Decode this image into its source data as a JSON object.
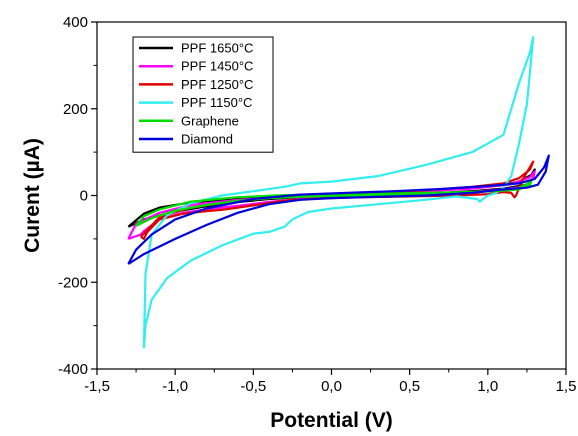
{
  "chart_data": {
    "type": "line",
    "title": "",
    "xlabel": "Potential (V)",
    "ylabel": "Curent (µA)",
    "xlim": [
      -1.5,
      1.5
    ],
    "ylim": [
      -400,
      400
    ],
    "xticks": [
      "-1,5",
      "-1,0",
      "-0,5",
      "0,0",
      "0,5",
      "1,0",
      "1,5"
    ],
    "yticks": [
      "400",
      "200",
      "0",
      "-200",
      "-400"
    ],
    "grid": false,
    "legend_position": "top-left",
    "series": [
      {
        "name": "PPF 1650°C",
        "color": "#000000",
        "points": [
          [
            -1.3,
            -72
          ],
          [
            -1.2,
            -55
          ],
          [
            -1.0,
            -37
          ],
          [
            -0.8,
            -25
          ],
          [
            -0.6,
            -15
          ],
          [
            -0.4,
            -8
          ],
          [
            -0.2,
            -4
          ],
          [
            0.0,
            -2
          ],
          [
            0.3,
            0
          ],
          [
            0.6,
            4
          ],
          [
            0.9,
            10
          ],
          [
            1.1,
            16
          ],
          [
            1.25,
            25
          ],
          [
            1.29,
            40
          ],
          [
            1.3,
            60
          ],
          [
            1.28,
            48
          ],
          [
            1.2,
            32
          ],
          [
            1.1,
            24
          ],
          [
            0.9,
            18
          ],
          [
            0.6,
            12
          ],
          [
            0.3,
            7
          ],
          [
            0.0,
            4
          ],
          [
            -0.3,
            -1
          ],
          [
            -0.5,
            -5
          ],
          [
            -0.7,
            -10
          ],
          [
            -0.9,
            -16
          ],
          [
            -1.1,
            -28
          ],
          [
            -1.2,
            -42
          ],
          [
            -1.3,
            -72
          ]
        ]
      },
      {
        "name": "PPF 1450°C",
        "color": "#ff00ff",
        "points": [
          [
            -1.3,
            -100
          ],
          [
            -1.22,
            -90
          ],
          [
            -1.2,
            -82
          ],
          [
            -1.1,
            -55
          ],
          [
            -0.95,
            -40
          ],
          [
            -0.8,
            -32
          ],
          [
            -0.7,
            -28
          ],
          [
            -0.55,
            -22
          ],
          [
            -0.4,
            -15
          ],
          [
            -0.2,
            -8
          ],
          [
            0.0,
            -4
          ],
          [
            0.3,
            -1
          ],
          [
            0.6,
            3
          ],
          [
            0.9,
            8
          ],
          [
            1.1,
            14
          ],
          [
            1.25,
            22
          ],
          [
            1.29,
            40
          ],
          [
            1.3,
            55
          ],
          [
            1.27,
            42
          ],
          [
            1.15,
            26
          ],
          [
            0.9,
            16
          ],
          [
            0.6,
            10
          ],
          [
            0.3,
            5
          ],
          [
            0.0,
            2
          ],
          [
            -0.3,
            -3
          ],
          [
            -0.6,
            -10
          ],
          [
            -0.9,
            -22
          ],
          [
            -1.1,
            -40
          ],
          [
            -1.25,
            -65
          ],
          [
            -1.3,
            -100
          ]
        ]
      },
      {
        "name": "PPF 1250°C",
        "color": "#e00000",
        "points": [
          [
            -1.22,
            -95
          ],
          [
            -1.2,
            -100
          ],
          [
            -1.18,
            -85
          ],
          [
            -1.1,
            -55
          ],
          [
            -0.95,
            -42
          ],
          [
            -0.8,
            -36
          ],
          [
            -0.7,
            -33
          ],
          [
            -0.6,
            -28
          ],
          [
            -0.45,
            -20
          ],
          [
            -0.3,
            -12
          ],
          [
            -0.1,
            -7
          ],
          [
            0.2,
            -4
          ],
          [
            0.5,
            -2
          ],
          [
            0.8,
            0
          ],
          [
            1.0,
            3
          ],
          [
            1.1,
            8
          ],
          [
            1.15,
            6
          ],
          [
            1.17,
            -4
          ],
          [
            1.18,
            0
          ],
          [
            1.22,
            35
          ],
          [
            1.26,
            60
          ],
          [
            1.29,
            78
          ],
          [
            1.27,
            60
          ],
          [
            1.2,
            40
          ],
          [
            1.1,
            28
          ],
          [
            0.9,
            20
          ],
          [
            0.6,
            12
          ],
          [
            0.3,
            6
          ],
          [
            0.0,
            2
          ],
          [
            -0.3,
            -3
          ],
          [
            -0.6,
            -12
          ],
          [
            -0.9,
            -28
          ],
          [
            -1.1,
            -50
          ],
          [
            -1.22,
            -95
          ]
        ]
      },
      {
        "name": "PPF 1150°C",
        "color": "#33eeee",
        "points": [
          [
            -1.2,
            -352
          ],
          [
            -1.19,
            -300
          ],
          [
            -1.15,
            -240
          ],
          [
            -1.05,
            -190
          ],
          [
            -0.9,
            -150
          ],
          [
            -0.7,
            -115
          ],
          [
            -0.5,
            -88
          ],
          [
            -0.4,
            -84
          ],
          [
            -0.3,
            -72
          ],
          [
            -0.25,
            -55
          ],
          [
            -0.15,
            -38
          ],
          [
            0.0,
            -30
          ],
          [
            0.3,
            -20
          ],
          [
            0.6,
            -10
          ],
          [
            0.8,
            -2
          ],
          [
            0.93,
            -8
          ],
          [
            0.95,
            -14
          ],
          [
            0.97,
            -8
          ],
          [
            1.0,
            0
          ],
          [
            1.05,
            5
          ],
          [
            1.1,
            18
          ],
          [
            1.15,
            45
          ],
          [
            1.2,
            120
          ],
          [
            1.25,
            210
          ],
          [
            1.29,
            365
          ],
          [
            1.27,
            330
          ],
          [
            1.2,
            260
          ],
          [
            1.1,
            140
          ],
          [
            0.9,
            100
          ],
          [
            0.6,
            70
          ],
          [
            0.3,
            45
          ],
          [
            0.0,
            32
          ],
          [
            -0.2,
            28
          ],
          [
            -0.3,
            20
          ],
          [
            -0.5,
            10
          ],
          [
            -0.7,
            0
          ],
          [
            -0.9,
            -18
          ],
          [
            -1.05,
            -45
          ],
          [
            -1.15,
            -90
          ],
          [
            -1.19,
            -180
          ],
          [
            -1.2,
            -352
          ]
        ]
      },
      {
        "name": "Graphene",
        "color": "#00dd00",
        "points": [
          [
            -1.25,
            -70
          ],
          [
            -1.15,
            -52
          ],
          [
            -1.0,
            -35
          ],
          [
            -0.8,
            -22
          ],
          [
            -0.6,
            -12
          ],
          [
            -0.4,
            -6
          ],
          [
            -0.2,
            -3
          ],
          [
            0.0,
            -1
          ],
          [
            0.3,
            1
          ],
          [
            0.6,
            4
          ],
          [
            0.9,
            8
          ],
          [
            1.1,
            12
          ],
          [
            1.2,
            18
          ],
          [
            1.26,
            28
          ],
          [
            1.28,
            35
          ],
          [
            1.27,
            25
          ],
          [
            1.2,
            14
          ],
          [
            1.05,
            10
          ],
          [
            0.9,
            8
          ],
          [
            0.6,
            6
          ],
          [
            0.3,
            4
          ],
          [
            0.0,
            3
          ],
          [
            -0.3,
            1
          ],
          [
            -0.6,
            -4
          ],
          [
            -0.9,
            -14
          ],
          [
            -1.1,
            -32
          ],
          [
            -1.2,
            -48
          ],
          [
            -1.25,
            -70
          ]
        ]
      },
      {
        "name": "Diamond",
        "color": "#0000dd",
        "points": [
          [
            -1.3,
            -158
          ],
          [
            -1.2,
            -135
          ],
          [
            -1.0,
            -100
          ],
          [
            -0.8,
            -68
          ],
          [
            -0.6,
            -40
          ],
          [
            -0.4,
            -20
          ],
          [
            -0.2,
            -10
          ],
          [
            0.0,
            -6
          ],
          [
            0.3,
            -3
          ],
          [
            0.6,
            0
          ],
          [
            0.9,
            6
          ],
          [
            1.1,
            14
          ],
          [
            1.25,
            18
          ],
          [
            1.32,
            25
          ],
          [
            1.37,
            55
          ],
          [
            1.39,
            92
          ],
          [
            1.36,
            65
          ],
          [
            1.3,
            38
          ],
          [
            1.2,
            28
          ],
          [
            1.0,
            22
          ],
          [
            0.7,
            15
          ],
          [
            0.4,
            10
          ],
          [
            0.1,
            6
          ],
          [
            -0.2,
            2
          ],
          [
            -0.5,
            -8
          ],
          [
            -0.8,
            -30
          ],
          [
            -1.0,
            -55
          ],
          [
            -1.15,
            -90
          ],
          [
            -1.25,
            -125
          ],
          [
            -1.3,
            -158
          ]
        ]
      }
    ]
  }
}
